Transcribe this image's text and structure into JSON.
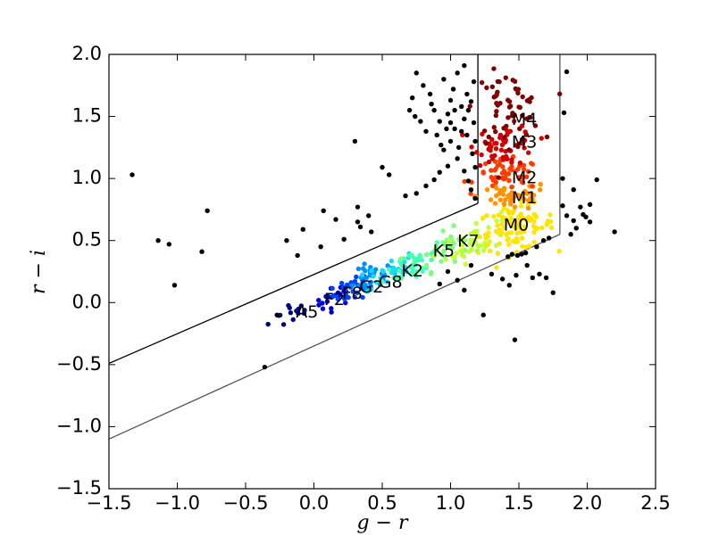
{
  "chart_data": {
    "type": "scatter",
    "xlabel": "g − r",
    "ylabel": "r − i",
    "xlim": [
      -1.5,
      2.5
    ],
    "ylim": [
      -1.5,
      2.0
    ],
    "xticks": [
      "−1.5",
      "−1.0",
      "−0.5",
      "0.0",
      "0.5",
      "1.0",
      "1.5",
      "2.0",
      "2.5"
    ],
    "yticks": [
      "−1.5",
      "−1.0",
      "−0.5",
      "0.0",
      "0.5",
      "1.0",
      "1.5",
      "2.0"
    ],
    "xtick_values": [
      -1.5,
      -1.0,
      -0.5,
      0.0,
      0.5,
      1.0,
      1.5,
      2.0,
      2.5
    ],
    "ytick_values": [
      -1.5,
      -1.0,
      -0.5,
      0.0,
      0.5,
      1.0,
      1.5,
      2.0
    ],
    "grid": false,
    "selection_box": {
      "lower_line": [
        [
          -1.5,
          -1.1
        ],
        [
          1.8,
          0.55
        ]
      ],
      "upper_line": [
        [
          -1.5,
          -0.49
        ],
        [
          1.2,
          0.8
        ]
      ],
      "left_vertical": [
        [
          1.2,
          0.8
        ],
        [
          1.2,
          2.0
        ]
      ],
      "right_vertical": [
        [
          1.8,
          0.55
        ],
        [
          1.8,
          2.0
        ]
      ]
    },
    "spectral_labels": [
      {
        "text": "A5",
        "x": -0.05,
        "y": -0.08
      },
      {
        "text": "F2",
        "x": 0.15,
        "y": 0.02
      },
      {
        "text": "F8",
        "x": 0.28,
        "y": 0.07
      },
      {
        "text": "G2",
        "x": 0.42,
        "y": 0.12
      },
      {
        "text": "G8",
        "x": 0.56,
        "y": 0.16
      },
      {
        "text": "K2",
        "x": 0.72,
        "y": 0.25
      },
      {
        "text": "K5",
        "x": 0.95,
        "y": 0.41
      },
      {
        "text": "K7",
        "x": 1.13,
        "y": 0.49
      },
      {
        "text": "M0",
        "x": 1.48,
        "y": 0.62
      },
      {
        "text": "M1",
        "x": 1.54,
        "y": 0.84
      },
      {
        "text": "M2",
        "x": 1.54,
        "y": 1.0
      },
      {
        "text": "M3",
        "x": 1.54,
        "y": 1.29
      },
      {
        "text": "M4",
        "x": 1.54,
        "y": 1.47
      }
    ],
    "clusters": [
      {
        "name": "A5",
        "color": "#00007f",
        "cx": -0.15,
        "cy": -0.08,
        "sx": 0.09,
        "sy": 0.06,
        "n": 14,
        "corr": 0.55
      },
      {
        "name": "F2",
        "color": "#0000d4",
        "cx": 0.15,
        "cy": 0.04,
        "sx": 0.07,
        "sy": 0.05,
        "n": 20,
        "corr": 0.55
      },
      {
        "name": "F8",
        "color": "#0044ff",
        "cx": 0.3,
        "cy": 0.12,
        "sx": 0.08,
        "sy": 0.06,
        "n": 34,
        "corr": 0.55
      },
      {
        "name": "G2",
        "color": "#0090ff",
        "cx": 0.42,
        "cy": 0.19,
        "sx": 0.08,
        "sy": 0.07,
        "n": 32,
        "corr": 0.55
      },
      {
        "name": "G8",
        "color": "#12dcf0",
        "cx": 0.56,
        "cy": 0.25,
        "sx": 0.09,
        "sy": 0.07,
        "n": 32,
        "corr": 0.55
      },
      {
        "name": "K2",
        "color": "#45ffb2",
        "cx": 0.74,
        "cy": 0.32,
        "sx": 0.11,
        "sy": 0.08,
        "n": 38,
        "corr": 0.55
      },
      {
        "name": "K5",
        "color": "#7dff7a",
        "cx": 0.95,
        "cy": 0.43,
        "sx": 0.09,
        "sy": 0.08,
        "n": 32,
        "corr": 0.55
      },
      {
        "name": "K7",
        "color": "#c1ff36",
        "cx": 1.17,
        "cy": 0.5,
        "sx": 0.1,
        "sy": 0.09,
        "n": 45,
        "corr": 0.55
      },
      {
        "name": "M0",
        "color": "#ffe500",
        "cx": 1.48,
        "cy": 0.6,
        "sx": 0.14,
        "sy": 0.09,
        "n": 95,
        "corr": 0.2
      },
      {
        "name": "M1",
        "color": "#ff9400",
        "cx": 1.45,
        "cy": 0.86,
        "sx": 0.13,
        "sy": 0.06,
        "n": 55,
        "corr": 0.0
      },
      {
        "name": "M2",
        "color": "#ff3b00",
        "cx": 1.42,
        "cy": 1.03,
        "sx": 0.12,
        "sy": 0.06,
        "n": 50,
        "corr": 0.0
      },
      {
        "name": "M3",
        "color": "#d40000",
        "cx": 1.4,
        "cy": 1.27,
        "sx": 0.11,
        "sy": 0.08,
        "n": 55,
        "corr": 0.0
      },
      {
        "name": "M4",
        "color": "#7f0000",
        "cx": 1.42,
        "cy": 1.57,
        "sx": 0.12,
        "sy": 0.14,
        "n": 60,
        "corr": 0.0
      }
    ],
    "outliers_color": "#000000",
    "outliers": [
      [
        -1.33,
        1.03
      ],
      [
        -1.14,
        0.5
      ],
      [
        -1.06,
        0.47
      ],
      [
        -1.02,
        0.14
      ],
      [
        -0.78,
        0.74
      ],
      [
        -0.82,
        0.41
      ],
      [
        -0.2,
        0.5
      ],
      [
        -0.12,
        0.38
      ],
      [
        -0.08,
        0.59
      ],
      [
        0.07,
        0.74
      ],
      [
        0.05,
        0.45
      ],
      [
        0.16,
        0.67
      ],
      [
        0.22,
        0.51
      ],
      [
        0.3,
        1.3
      ],
      [
        0.32,
        0.65
      ],
      [
        0.34,
        0.61
      ],
      [
        0.32,
        0.77
      ],
      [
        0.4,
        0.7
      ],
      [
        0.42,
        0.57
      ],
      [
        0.5,
        1.09
      ],
      [
        0.55,
        1.03
      ],
      [
        0.67,
        0.86
      ],
      [
        0.75,
        0.88
      ],
      [
        0.82,
        0.94
      ],
      [
        0.88,
        0.99
      ],
      [
        0.92,
        1.05
      ],
      [
        0.95,
        1.23
      ],
      [
        0.98,
        1.1
      ],
      [
        1.0,
        1.3
      ],
      [
        1.05,
        1.16
      ],
      [
        1.1,
        1.06
      ],
      [
        1.13,
        0.98
      ],
      [
        1.16,
        1.2
      ],
      [
        1.18,
        1.09
      ],
      [
        1.15,
        0.91
      ],
      [
        1.18,
        0.84
      ],
      [
        0.75,
        1.85
      ],
      [
        0.72,
        1.65
      ],
      [
        0.8,
        1.75
      ],
      [
        0.85,
        1.68
      ],
      [
        0.88,
        1.55
      ],
      [
        0.92,
        1.46
      ],
      [
        0.95,
        1.8
      ],
      [
        0.98,
        1.52
      ],
      [
        1.0,
        1.63
      ],
      [
        1.02,
        1.72
      ],
      [
        1.03,
        1.4
      ],
      [
        1.05,
        1.85
      ],
      [
        1.06,
        1.25
      ],
      [
        1.08,
        1.58
      ],
      [
        1.1,
        1.48
      ],
      [
        1.1,
        1.91
      ],
      [
        1.12,
        1.35
      ],
      [
        1.12,
        1.68
      ],
      [
        1.15,
        1.62
      ],
      [
        1.17,
        1.45
      ],
      [
        1.18,
        1.3
      ],
      [
        1.17,
        1.78
      ],
      [
        0.7,
        1.55
      ],
      [
        0.78,
        1.46
      ],
      [
        0.82,
        1.38
      ],
      [
        0.9,
        1.35
      ],
      [
        0.93,
        1.27
      ],
      [
        1.0,
        1.45
      ],
      [
        1.03,
        1.55
      ],
      [
        0.86,
        1.6
      ],
      [
        0.97,
        1.4
      ],
      [
        1.08,
        1.38
      ],
      [
        1.13,
        1.55
      ],
      [
        0.74,
        1.5
      ],
      [
        1.85,
        1.86
      ],
      [
        1.83,
        1.53
      ],
      [
        1.82,
        1.0
      ],
      [
        1.9,
        0.91
      ],
      [
        1.9,
        0.66
      ],
      [
        1.95,
        0.77
      ],
      [
        1.97,
        0.71
      ],
      [
        1.99,
        0.69
      ],
      [
        2.02,
        0.65
      ],
      [
        2.02,
        0.79
      ],
      [
        2.07,
        0.99
      ],
      [
        2.2,
        0.57
      ],
      [
        1.88,
        0.55
      ],
      [
        1.92,
        0.6
      ],
      [
        1.85,
        0.7
      ],
      [
        1.82,
        0.78
      ],
      [
        1.42,
        0.37
      ],
      [
        1.45,
        0.39
      ],
      [
        1.49,
        0.38
      ],
      [
        1.52,
        0.39
      ],
      [
        1.55,
        0.4
      ],
      [
        1.63,
        0.45
      ],
      [
        1.68,
        0.5
      ],
      [
        1.72,
        0.52
      ],
      [
        1.56,
        0.3
      ],
      [
        1.6,
        0.2
      ],
      [
        1.65,
        0.23
      ],
      [
        1.7,
        0.2
      ],
      [
        1.48,
        0.22
      ],
      [
        1.43,
        0.14
      ],
      [
        1.47,
        -0.3
      ],
      [
        1.24,
        -0.1
      ],
      [
        1.1,
        0.1
      ],
      [
        1.15,
        0.3
      ],
      [
        0.98,
        0.25
      ],
      [
        1.05,
        0.18
      ],
      [
        0.92,
        0.15
      ],
      [
        1.3,
        0.23
      ],
      [
        1.38,
        0.19
      ],
      [
        1.75,
        0.08
      ],
      [
        -0.36,
        -0.52
      ],
      [
        -0.27,
        -0.1
      ]
    ]
  }
}
